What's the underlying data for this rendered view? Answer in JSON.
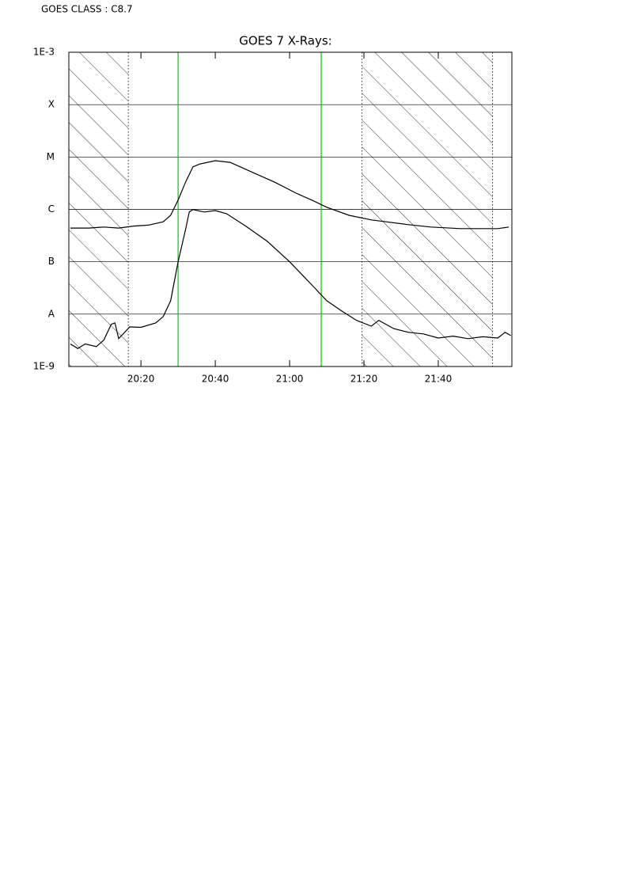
{
  "header": "GOES CLASS : C8.7",
  "chart_data": {
    "type": "line",
    "title": "GOES 7 X-Rays:",
    "log_y": true,
    "grid": true,
    "xlim": [
      1200.6,
      1319.8
    ],
    "xticks": [
      {
        "value": 1220,
        "label": "20:20"
      },
      {
        "value": 1240,
        "label": "20:40"
      },
      {
        "value": 1260,
        "label": "21:00"
      },
      {
        "value": 1280,
        "label": "21:20"
      },
      {
        "value": 1300,
        "label": "21:40"
      }
    ],
    "ylim": [
      1e-09,
      0.001
    ],
    "yticks": [
      {
        "value": 1e-09,
        "label": "1E-9"
      },
      {
        "value": 1e-08,
        "label": "A"
      },
      {
        "value": 1e-07,
        "label": "B"
      },
      {
        "value": 1e-06,
        "label": "C"
      },
      {
        "value": 1e-05,
        "label": "M"
      },
      {
        "value": 0.0001,
        "label": "X"
      },
      {
        "value": 0.001,
        "label": "1E-3"
      }
    ],
    "shaded_ranges": [
      [
        1200.6,
        1216.6
      ],
      [
        1279.5,
        1314.6
      ]
    ],
    "markers": [
      1230.0,
      1268.5
    ],
    "marker_color": "#00cc00",
    "series": [
      {
        "color": "#000000",
        "x": [
          1201,
          1206,
          1210,
          1214,
          1218,
          1222,
          1226,
          1228,
          1230,
          1232,
          1234,
          1236,
          1240,
          1244,
          1250,
          1256,
          1262,
          1266,
          1270,
          1276,
          1282,
          1286,
          1292,
          1298,
          1306,
          1312,
          1316,
          1319
        ],
        "values": [
          4.4e-07,
          4.4e-07,
          4.6e-07,
          4.4e-07,
          4.8e-07,
          5e-07,
          5.8e-07,
          7.7e-07,
          1.5e-06,
          3.3e-06,
          6.5e-06,
          7.4e-06,
          8.5e-06,
          7.9e-06,
          5.1e-06,
          3.3e-06,
          2e-06,
          1.5e-06,
          1.1e-06,
          7.7e-07,
          6.3e-07,
          5.8e-07,
          5.1e-07,
          4.6e-07,
          4.3e-07,
          4.3e-07,
          4.3e-07,
          4.6e-07
        ]
      },
      {
        "color": "#000000",
        "x": [
          1201,
          1203,
          1205,
          1208,
          1210,
          1212,
          1213,
          1214,
          1217,
          1220,
          1224,
          1226,
          1228,
          1230,
          1232,
          1233,
          1234,
          1237,
          1240,
          1243,
          1248,
          1254,
          1260,
          1266,
          1270,
          1274,
          1278,
          1282,
          1284,
          1288,
          1292,
          1296,
          1300,
          1304,
          1308,
          1312,
          1316,
          1318,
          1319.5
        ],
        "values": [
          2.7e-09,
          2.2e-09,
          2.7e-09,
          2.4e-09,
          3.2e-09,
          6.4e-09,
          6.8e-09,
          3.4e-09,
          5.7e-09,
          5.6e-09,
          6.8e-09,
          9e-09,
          1.8e-08,
          1e-07,
          4.1e-07,
          8.9e-07,
          9.9e-07,
          8.9e-07,
          9.5e-07,
          8.3e-07,
          4.9e-07,
          2.45e-07,
          1e-07,
          3.6e-08,
          1.8e-08,
          1.15e-08,
          7.6e-09,
          5.9e-09,
          7.6e-09,
          5.3e-09,
          4.5e-09,
          4.2e-09,
          3.5e-09,
          3.8e-09,
          3.4e-09,
          3.7e-09,
          3.5e-09,
          4.5e-09,
          3.9e-09
        ]
      }
    ]
  }
}
